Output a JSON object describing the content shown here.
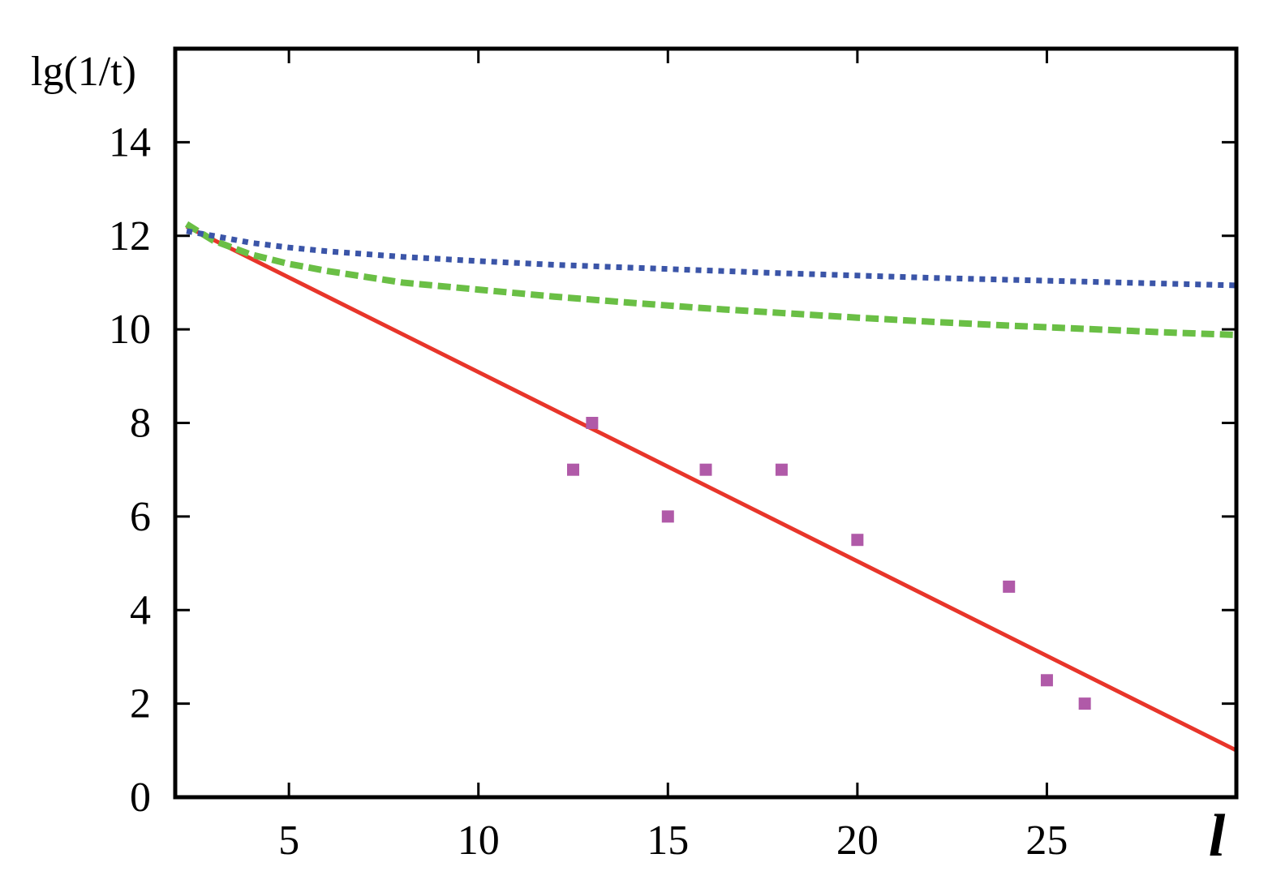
{
  "chart_data": {
    "type": "line",
    "xlabel": "l",
    "ylabel": "lg(1/t)",
    "xlim": [
      2,
      30
    ],
    "ylim": [
      0,
      16
    ],
    "x_ticks": [
      5,
      10,
      15,
      20,
      25
    ],
    "y_ticks": [
      0,
      2,
      4,
      6,
      8,
      10,
      12,
      14
    ],
    "grid": false,
    "series": [
      {
        "style": "solid",
        "color": "#e8352a",
        "x": [
          2.3,
          30
        ],
        "y": [
          12.2,
          1.0
        ]
      },
      {
        "style": "dashed",
        "color": "#6abf45",
        "x": [
          2.3,
          3,
          4,
          5,
          6,
          8,
          10,
          12,
          14,
          16,
          18,
          20,
          22,
          24,
          26,
          28,
          30
        ],
        "y": [
          12.25,
          11.9,
          11.6,
          11.4,
          11.25,
          11.0,
          10.85,
          10.7,
          10.57,
          10.45,
          10.35,
          10.25,
          10.16,
          10.08,
          10.01,
          9.94,
          9.88
        ]
      },
      {
        "style": "dotted",
        "color": "#3b55a8",
        "x": [
          2.3,
          3,
          4,
          5,
          6,
          8,
          10,
          12,
          14,
          16,
          18,
          20,
          22,
          24,
          26,
          28,
          30
        ],
        "y": [
          12.1,
          12.0,
          11.85,
          11.75,
          11.67,
          11.55,
          11.46,
          11.38,
          11.32,
          11.26,
          11.2,
          11.15,
          11.1,
          11.06,
          11.02,
          10.98,
          10.94
        ]
      },
      {
        "style": "markers",
        "color": "#b05aa8",
        "x": [
          12.5,
          13,
          15,
          16,
          18,
          20,
          24,
          25,
          26
        ],
        "y": [
          7,
          8,
          6,
          7,
          7,
          5.5,
          4.5,
          2.5,
          2
        ]
      }
    ]
  }
}
